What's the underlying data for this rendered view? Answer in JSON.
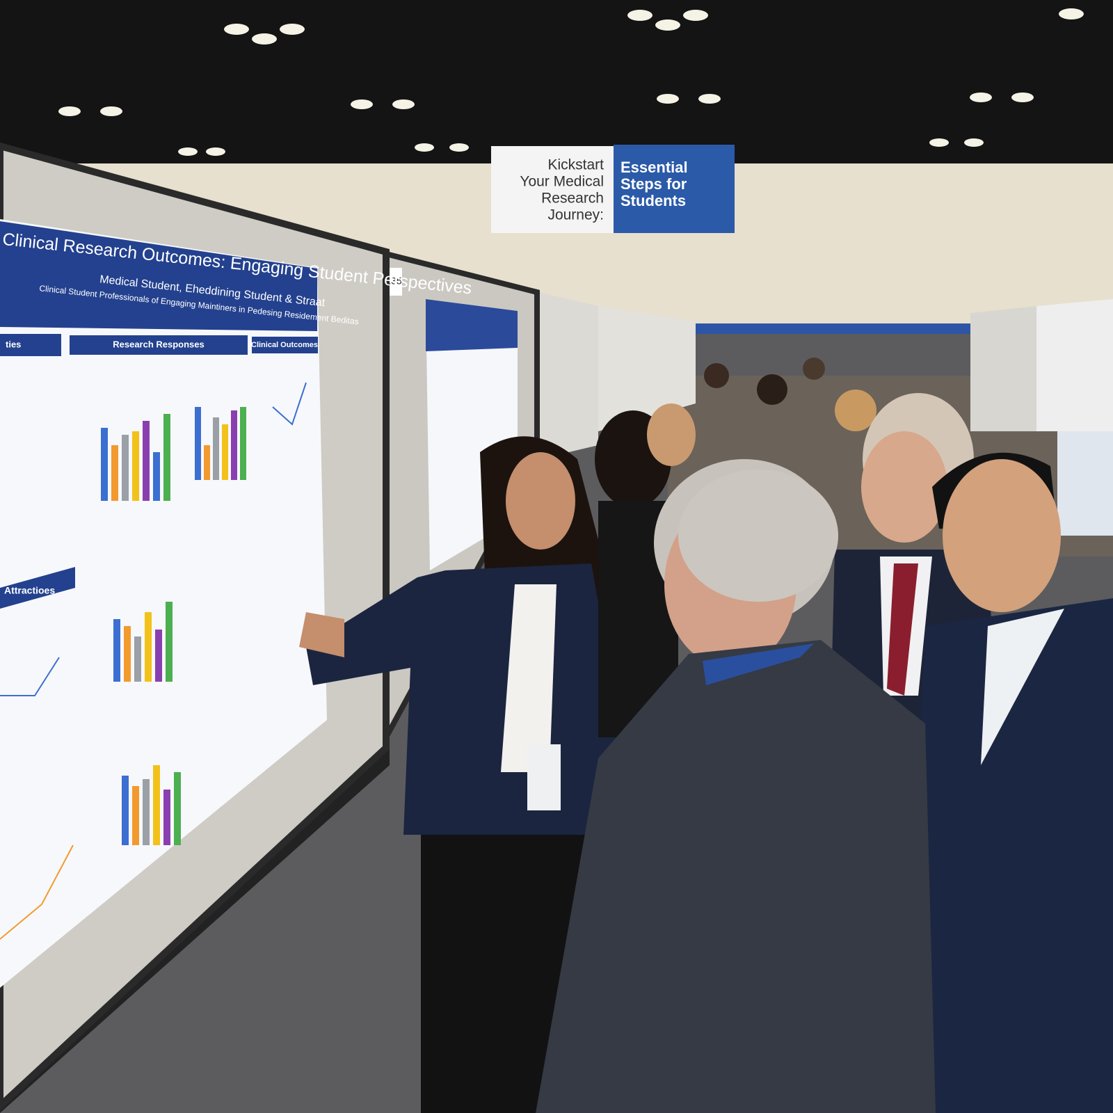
{
  "banner": {
    "left_lines": [
      "Kickstart",
      "Your Medical",
      "Research",
      "Journey:"
    ],
    "right_lines": [
      "Essential",
      "Steps for",
      "Students"
    ]
  },
  "poster": {
    "title": "Clinical Research Outcomes: Engaging Student Perspectives",
    "subtitle": "Medical Student, Eheddining Student & Straat",
    "byline": "Clinical Student Professionals of Engaging Maintiners in Pedesing Residement Beditas",
    "sections": [
      "ties",
      "Research Responses",
      "Clinical Outcomes",
      "Attractioes"
    ]
  },
  "board_number": "135"
}
